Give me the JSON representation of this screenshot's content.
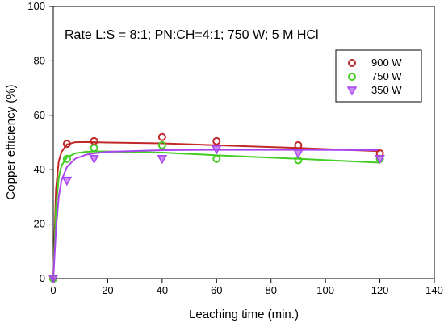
{
  "chart_data": {
    "type": "scatter",
    "title": "Rate L:S = 8:1;  PN:CH=4:1; 750 W; 5 M HCl",
    "xlabel": "Leaching time (min.)",
    "ylabel": "Copper efficiency (%)",
    "xlim": [
      0,
      140
    ],
    "ylim": [
      0,
      100
    ],
    "xticks": [
      0,
      20,
      40,
      60,
      80,
      100,
      120,
      140
    ],
    "yticks": [
      0,
      20,
      40,
      60,
      80,
      100
    ],
    "grid": false,
    "legend_position": "top-right",
    "series": [
      {
        "name": "900 W",
        "marker": "circle",
        "color": "#c0282a",
        "x": [
          0,
          5,
          15,
          40,
          60,
          90,
          120
        ],
        "y": [
          0,
          49.5,
          50.5,
          52,
          50.5,
          49,
          46
        ],
        "fit_x": [
          0,
          1,
          2,
          3,
          5,
          8,
          12,
          15,
          20,
          40,
          60,
          90,
          120
        ],
        "fit_y": [
          0,
          33,
          43,
          46.5,
          49.3,
          50.1,
          50.2,
          50.1,
          50,
          49.7,
          49,
          48,
          46.8
        ]
      },
      {
        "name": "750 W",
        "marker": "circle",
        "color": "#44cc22",
        "x": [
          0,
          5,
          15,
          40,
          60,
          90,
          120
        ],
        "y": [
          0,
          44,
          48,
          49,
          44,
          43.5,
          44
        ],
        "fit_x": [
          0,
          1,
          2,
          3,
          5,
          8,
          12,
          15,
          20,
          40,
          60,
          90,
          120
        ],
        "fit_y": [
          0,
          26,
          37,
          41.5,
          44.5,
          46,
          46.6,
          46.7,
          46.7,
          46.3,
          45.3,
          44,
          42.6
        ]
      },
      {
        "name": "350 W",
        "marker": "triangle-down",
        "color": "#aa44ee",
        "x": [
          0,
          5,
          15,
          40,
          60,
          90,
          120
        ],
        "y": [
          0,
          36,
          44,
          44,
          47.5,
          46,
          44
        ],
        "fit_x": [
          0,
          1,
          2,
          3,
          5,
          8,
          12,
          15,
          20,
          40,
          60,
          90,
          120
        ],
        "fit_y": [
          0,
          18,
          30,
          36,
          41,
          44,
          45.5,
          46,
          46.6,
          47.2,
          47.3,
          47.3,
          47.2
        ]
      }
    ]
  }
}
